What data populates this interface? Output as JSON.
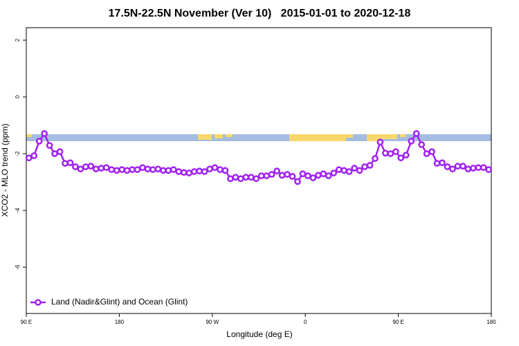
{
  "chart_data": {
    "type": "line",
    "title": "17.5N-22.5N November (Ver 10)   2015-01-01 to 2020-12-18",
    "x_label": "Longitude (deg E)",
    "y_label": "XCO2 - MLO trend (ppm)",
    "xlim": [
      90,
      540
    ],
    "xticks": [
      {
        "value": 90,
        "label": "90 E"
      },
      180,
      {
        "value": 270,
        "label": "90 W"
      },
      {
        "value": 360,
        "label": "0"
      },
      {
        "value": 450,
        "label": "90 E"
      },
      {
        "value": 540,
        "label": "180"
      }
    ],
    "ylim": [
      -7.63,
      2.44
    ],
    "yticks": [
      2,
      0,
      -2,
      -4,
      -6
    ],
    "legend": "bottom left",
    "x": [
      92.5,
      97.5,
      102.5,
      107.5,
      112.5,
      117.5,
      122.5,
      127.5,
      132.5,
      137.5,
      142.5,
      147.5,
      152.5,
      157.5,
      162.5,
      167.5,
      172.5,
      177.5,
      182.5,
      187.5,
      192.5,
      197.5,
      202.5,
      207.5,
      212.5,
      217.5,
      222.5,
      227.5,
      232.5,
      237.5,
      242.5,
      247.5,
      252.5,
      257.5,
      262.5,
      267.5,
      272.5,
      277.5,
      282.5,
      287.5,
      292.5,
      297.5,
      302.5,
      307.5,
      312.5,
      317.5,
      322.5,
      327.5,
      332.5,
      337.5,
      342.5,
      347.5,
      352.5,
      357.5,
      362.5,
      367.5,
      372.5,
      377.5,
      382.5,
      387.5,
      392.5,
      397.5,
      402.5,
      407.5,
      412.5,
      417.5,
      422.5,
      427.5,
      432.5,
      437.5,
      442.5,
      447.5,
      452.5,
      457.5,
      462.5,
      467.5,
      472.5,
      477.5,
      482.5,
      487.5,
      492.5,
      497.5,
      502.5,
      507.5,
      512.5,
      517.5,
      522.5,
      527.5,
      532.5,
      537.5
    ],
    "series": [
      {
        "name": "Land (Nadir&Glint) and Ocean (Glint)",
        "color": "#a020f0",
        "values": [
          -2.15,
          -2.07,
          -1.56,
          -1.29,
          -1.71,
          -2.0,
          -1.93,
          -2.34,
          -2.32,
          -2.46,
          -2.54,
          -2.46,
          -2.44,
          -2.54,
          -2.51,
          -2.49,
          -2.56,
          -2.59,
          -2.56,
          -2.59,
          -2.56,
          -2.56,
          -2.49,
          -2.54,
          -2.56,
          -2.54,
          -2.59,
          -2.59,
          -2.56,
          -2.63,
          -2.66,
          -2.68,
          -2.63,
          -2.61,
          -2.63,
          -2.54,
          -2.49,
          -2.56,
          -2.59,
          -2.88,
          -2.83,
          -2.88,
          -2.83,
          -2.83,
          -2.88,
          -2.78,
          -2.78,
          -2.73,
          -2.61,
          -2.76,
          -2.73,
          -2.8,
          -2.98,
          -2.71,
          -2.78,
          -2.85,
          -2.76,
          -2.71,
          -2.78,
          -2.68,
          -2.56,
          -2.59,
          -2.63,
          -2.51,
          -2.59,
          -2.46,
          -2.41,
          -2.17,
          -1.59,
          -1.98,
          -2.0,
          -1.93,
          -2.15,
          -2.05,
          -1.56,
          -1.29,
          -1.68,
          -2.0,
          -1.93,
          -2.34,
          -2.32,
          -2.46,
          -2.54,
          -2.44,
          -2.44,
          -2.54,
          -2.51,
          -2.49,
          -2.49,
          -2.56
        ]
      }
    ]
  }
}
